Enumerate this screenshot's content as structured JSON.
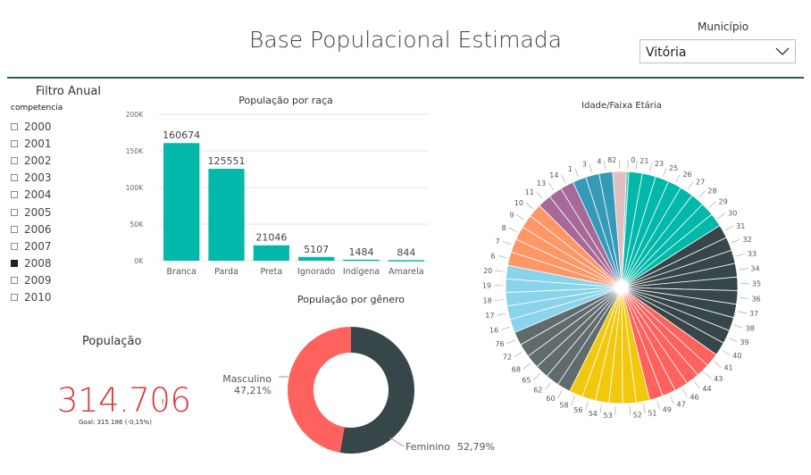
{
  "header": {
    "title": "Base Populacional Estimada"
  },
  "municipio": {
    "label": "Município",
    "value": "Vitória",
    "icon": "chevron-down-icon"
  },
  "slicer": {
    "title": "Filtro Anual",
    "field": "competencia",
    "years": [
      "2000",
      "2001",
      "2002",
      "2003",
      "2004",
      "2005",
      "2006",
      "2007",
      "2008",
      "2009",
      "2010"
    ],
    "selected": "2008"
  },
  "card": {
    "title": "População",
    "value": "314.706",
    "flag": "!",
    "goal": "Goal: 315.186 (-0,15%)",
    "color": "#e0333d"
  },
  "colors": {
    "teal": "#01b8aa",
    "dark": "#374649",
    "red": "#fd625e",
    "yellow": "#f2c80f",
    "grey": "#5f6b6d",
    "lightblue": "#8ad4eb",
    "orange": "#fe9666",
    "purple": "#a66999",
    "blue": "#3599b8",
    "pink": "#dfbfbf",
    "green": "#4ac5bb"
  },
  "chart_data": [
    {
      "type": "bar",
      "title": "População por raça",
      "categories": [
        "Branca",
        "Parda",
        "Preta",
        "Ignorado",
        "Indígena",
        "Amarela"
      ],
      "values": [
        160674,
        125551,
        21046,
        5107,
        1484,
        844
      ],
      "ylim": [
        0,
        200000
      ],
      "yticks": [
        "0K",
        "50K",
        "100K",
        "150K",
        "200K"
      ],
      "grid": true
    },
    {
      "type": "pie",
      "title": "População por gênero",
      "slices": [
        {
          "label": "Masculino",
          "percent_label": "47,21%",
          "value": 47.21
        },
        {
          "label": "Feminino",
          "percent_label": "52,79%",
          "value": 52.79
        }
      ]
    },
    {
      "type": "pie",
      "title": "Idade/Faixa Etária",
      "slices": [
        {
          "label": "0",
          "value": 0.3
        },
        {
          "label": "21",
          "value": 1.6
        },
        {
          "label": "23",
          "value": 1.6
        },
        {
          "label": "25",
          "value": 1.6
        },
        {
          "label": "26",
          "value": 1.6
        },
        {
          "label": "27",
          "value": 1.6
        },
        {
          "label": "28",
          "value": 1.6
        },
        {
          "label": "29",
          "value": 1.6
        },
        {
          "label": "30",
          "value": 1.6
        },
        {
          "label": "31",
          "value": 1.6
        },
        {
          "label": "32",
          "value": 1.6
        },
        {
          "label": "33",
          "value": 1.6
        },
        {
          "label": "34",
          "value": 1.6
        },
        {
          "label": "35",
          "value": 1.6
        },
        {
          "label": "36",
          "value": 1.6
        },
        {
          "label": "37",
          "value": 1.6
        },
        {
          "label": "38",
          "value": 1.6
        },
        {
          "label": "39",
          "value": 1.6
        },
        {
          "label": "40",
          "value": 1.6
        },
        {
          "label": "41",
          "value": 1.6
        },
        {
          "label": "43",
          "value": 1.6
        },
        {
          "label": "44",
          "value": 1.6
        },
        {
          "label": "46",
          "value": 1.6
        },
        {
          "label": "47",
          "value": 1.6
        },
        {
          "label": "49",
          "value": 1.6
        },
        {
          "label": "51",
          "value": 1.6
        },
        {
          "label": "52",
          "value": 1.6
        },
        {
          "label": "53",
          "value": 1.6
        },
        {
          "label": "54",
          "value": 1.6
        },
        {
          "label": "56",
          "value": 1.6
        },
        {
          "label": "58",
          "value": 1.6
        },
        {
          "label": "60",
          "value": 1.6
        },
        {
          "label": "62",
          "value": 1.6
        },
        {
          "label": "65",
          "value": 1.6
        },
        {
          "label": "68",
          "value": 1.6
        },
        {
          "label": "72",
          "value": 1.6
        },
        {
          "label": "76",
          "value": 1.6
        },
        {
          "label": "16",
          "value": 1.6
        },
        {
          "label": "17",
          "value": 1.6
        },
        {
          "label": "18",
          "value": 1.6
        },
        {
          "label": "19",
          "value": 1.6
        },
        {
          "label": "20",
          "value": 1.6
        },
        {
          "label": "6",
          "value": 1.6
        },
        {
          "label": "7",
          "value": 1.6
        },
        {
          "label": "8",
          "value": 1.6
        },
        {
          "label": "9",
          "value": 1.6
        },
        {
          "label": "10",
          "value": 1.6
        },
        {
          "label": "11",
          "value": 1.6
        },
        {
          "label": "13",
          "value": 1.6
        },
        {
          "label": "14",
          "value": 1.6
        },
        {
          "label": "1",
          "value": 1.6
        },
        {
          "label": "3",
          "value": 1.6
        },
        {
          "label": "4",
          "value": 1.6
        },
        {
          "label": "82",
          "value": 1.6
        }
      ]
    }
  ]
}
